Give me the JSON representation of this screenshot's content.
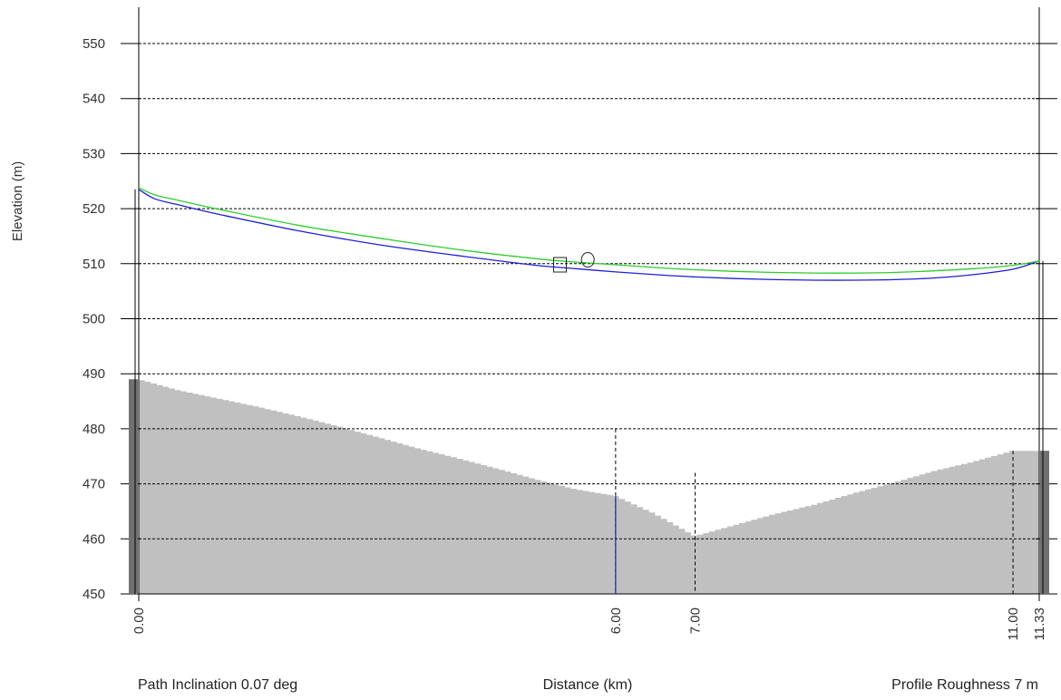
{
  "chart_data": {
    "type": "area",
    "ylabel": "Elevation (m)",
    "xlabel": "Distance (km)",
    "footer_left": "Path Inclination 0.07 deg",
    "footer_right": "Profile Roughness 7 m",
    "xlim": [
      0,
      11.33
    ],
    "ylim": [
      450,
      550
    ],
    "yticks": [
      450,
      460,
      470,
      480,
      490,
      500,
      510,
      520,
      530,
      540,
      550
    ],
    "xticks": [
      "0.00",
      "6.00",
      "7.00",
      "11.00",
      "11.33"
    ],
    "xtick_values": [
      0,
      6,
      7,
      11,
      11.33
    ],
    "grid": true,
    "series": [
      {
        "kind": "terrain",
        "color": "#c0c0c0",
        "x": [
          0,
          0.5,
          1,
          1.5,
          2,
          2.5,
          3,
          3.5,
          4,
          4.5,
          5,
          5.5,
          6,
          6.5,
          7,
          7.5,
          8,
          8.5,
          9,
          9.5,
          10,
          10.5,
          11,
          11.33
        ],
        "y": [
          489,
          487,
          485.5,
          484,
          482.3,
          480.5,
          478.5,
          476.5,
          474.7,
          472.8,
          470.8,
          469,
          467.8,
          464.5,
          460.5,
          462.5,
          464.5,
          466.2,
          468.3,
          470.2,
          472.3,
          474,
          476,
          476
        ]
      },
      {
        "kind": "line",
        "color": "#1f1fd6",
        "x": [
          0,
          0.2,
          0.5,
          1,
          2,
          3,
          4,
          5,
          5.5,
          6,
          6.5,
          7,
          7.5,
          8,
          8.5,
          9,
          9.5,
          10,
          10.5,
          11,
          11.33
        ],
        "y": [
          523.5,
          521.8,
          520.7,
          519,
          516,
          513.5,
          511.5,
          509.7,
          509.1,
          508.5,
          508,
          507.6,
          507.3,
          507.1,
          507,
          507,
          507.1,
          507.4,
          508,
          509,
          510.5
        ]
      },
      {
        "kind": "line",
        "color": "#2ecc2e",
        "x": [
          0,
          0.2,
          0.5,
          1,
          2,
          3,
          4,
          5,
          5.5,
          6,
          6.5,
          7,
          7.5,
          8,
          8.5,
          9,
          9.5,
          10,
          10.5,
          11,
          11.33
        ],
        "y": [
          523.8,
          522.5,
          521.5,
          519.9,
          517,
          514.7,
          512.6,
          510.9,
          510.3,
          509.8,
          509.3,
          508.9,
          508.6,
          508.4,
          508.3,
          508.3,
          508.4,
          508.7,
          509.1,
          509.7,
          510.5
        ]
      }
    ],
    "markers": [
      {
        "shape": "square",
        "x": 5.3,
        "y": 509.8
      },
      {
        "shape": "circle",
        "x": 5.65,
        "y": 510.7
      }
    ],
    "vertical_lines": [
      {
        "x": 6,
        "top": 480,
        "style": "dashed",
        "lower_color": "#1f1fd6"
      },
      {
        "x": 7,
        "top": 472,
        "style": "dashed"
      },
      {
        "x": 11,
        "top": 476,
        "style": "dashed"
      }
    ],
    "antennas": [
      {
        "x": 0,
        "top": 523.5,
        "mast_color": "#707070"
      },
      {
        "x": 11.33,
        "top": 510.5,
        "mast_color": "#707070"
      }
    ]
  }
}
